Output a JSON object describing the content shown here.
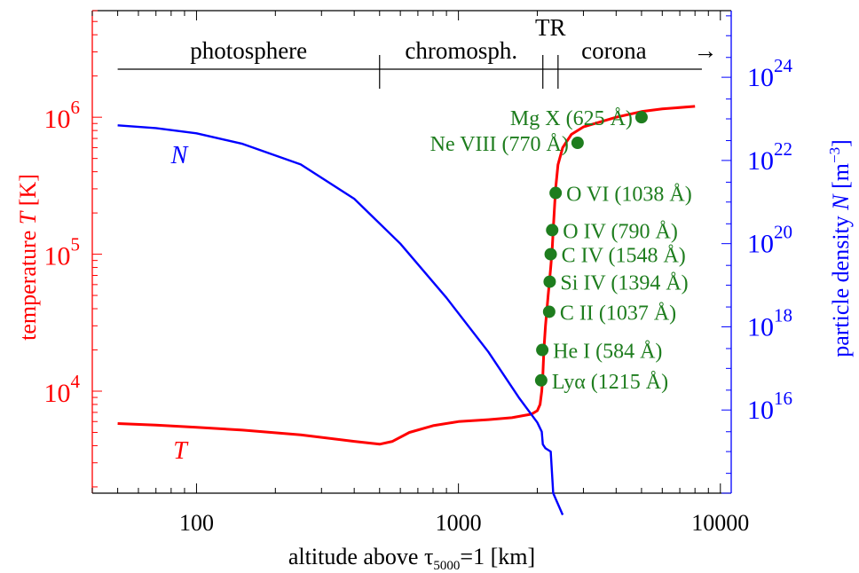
{
  "chart_data": {
    "type": "line",
    "x_axis": {
      "label_main": "altitude above τ",
      "label_sub": "5000",
      "label_tail": "=1  [km]",
      "scale": "log",
      "range": [
        40,
        11000
      ],
      "ticks": [
        {
          "value": 100,
          "label": "100"
        },
        {
          "value": 1000,
          "label": "1000"
        },
        {
          "value": 10000,
          "label": "10000"
        }
      ]
    },
    "y_left": {
      "label_main": "temperature  ",
      "label_sym": "T",
      "label_unit": " [K]",
      "scale": "log",
      "range": [
        1800,
        6000000
      ],
      "ticks": [
        {
          "base": "10",
          "exp": "4",
          "value": 10000
        },
        {
          "base": "10",
          "exp": "5",
          "value": 100000
        },
        {
          "base": "10",
          "exp": "6",
          "value": 1000000
        }
      ],
      "color": "#ff0000"
    },
    "y_right": {
      "label_main": "particle density  ",
      "label_sym": "N",
      "label_unit": " [m",
      "label_exp": "−3",
      "label_close": "]",
      "scale": "log",
      "range": [
        100000000000000.0,
        4e+25
      ],
      "ticks": [
        {
          "base": "10",
          "exp": "16",
          "value": 1e+16
        },
        {
          "base": "10",
          "exp": "18",
          "value": 1e+18
        },
        {
          "base": "10",
          "exp": "20",
          "value": 1e+20
        },
        {
          "base": "10",
          "exp": "22",
          "value": 1e+22
        },
        {
          "base": "10",
          "exp": "24",
          "value": 1e+24
        }
      ],
      "color": "#0000ff"
    },
    "series": [
      {
        "name": "T",
        "axis": "left",
        "color": "#ff0000",
        "x": [
          50,
          70,
          100,
          150,
          250,
          400,
          500,
          560,
          650,
          800,
          1000,
          1300,
          1600,
          1900,
          2000,
          2050,
          2080,
          2100,
          2120,
          2150,
          2200,
          2250,
          2280,
          2300,
          2320,
          2350,
          2400,
          2500,
          2700,
          3000,
          4000,
          5000,
          6000,
          8000
        ],
        "values": [
          5800,
          5650,
          5450,
          5200,
          4800,
          4300,
          4100,
          4300,
          5000,
          5600,
          6000,
          6200,
          6400,
          6800,
          7200,
          8000,
          10000,
          13000,
          20000,
          30000,
          50000,
          80000,
          110000,
          150000,
          200000,
          300000,
          450000,
          600000,
          750000,
          850000,
          1000000,
          1100000,
          1150000,
          1200000
        ]
      },
      {
        "name": "N",
        "axis": "right",
        "color": "#0000ff",
        "x": [
          50,
          70,
          100,
          150,
          250,
          400,
          600,
          900,
          1300,
          1700,
          2000,
          2080,
          2100,
          2150,
          2250,
          2300,
          2500
        ],
        "values": [
          7e+22,
          6e+22,
          4.5e+22,
          2.5e+22,
          8e+21,
          1.2e+21,
          1e+20,
          5e+18,
          2.5e+17,
          2e+16,
          5000000000000000.0,
          3000000000000000.0,
          1500000000000000.0,
          1200000000000000.0,
          1000000000000000.0,
          100000000000000.0,
          30000000000000.0
        ]
      }
    ],
    "series_labels": [
      {
        "text": "N",
        "color": "#0000ff"
      },
      {
        "text": "T",
        "color": "#ff0000"
      }
    ],
    "ions": [
      {
        "label": "Mg X (625 Å)",
        "x": 5000,
        "T": 1000000
      },
      {
        "label": "Ne VIII (770 Å)",
        "x": 2850,
        "T": 650000
      },
      {
        "label": "O VI (1038 Å)",
        "x": 2350,
        "T": 280000
      },
      {
        "label": "O IV (790 Å)",
        "x": 2280,
        "T": 150000
      },
      {
        "label": "C IV (1548 Å)",
        "x": 2250,
        "T": 100000
      },
      {
        "label": "Si IV (1394 Å)",
        "x": 2230,
        "T": 63000
      },
      {
        "label": "C II  (1037 Å)",
        "x": 2220,
        "T": 38000
      },
      {
        "label": "He I (584 Å)",
        "x": 2090,
        "T": 20000
      },
      {
        "label": "Lyα (1215 Å)",
        "x": 2070,
        "T": 12000
      }
    ],
    "ion_color": "#1e7d1e",
    "regions": {
      "labels": [
        "photosphere",
        "chromosph.",
        "TR",
        "corona"
      ],
      "arrow": "→",
      "boundaries_km": [
        500,
        2100,
        2400
      ],
      "start_km": 50,
      "end_km": 8500
    }
  }
}
